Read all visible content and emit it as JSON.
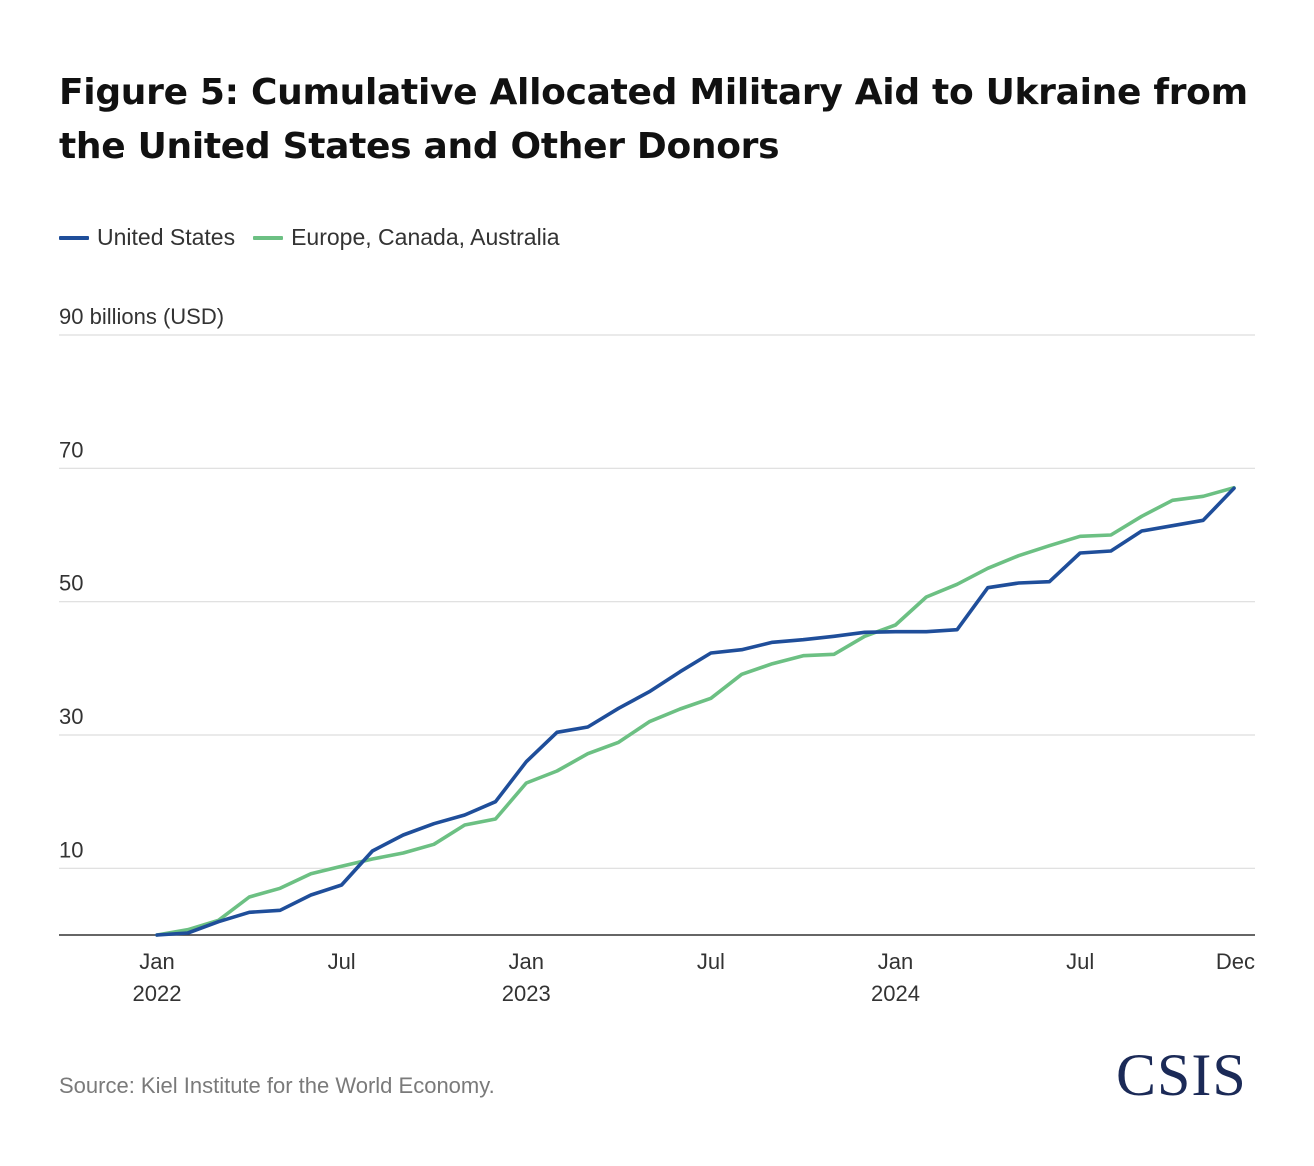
{
  "title": "Figure 5: Cumulative Allocated Military Aid to Ukraine from the United States and Other Donors",
  "legend": [
    {
      "label": "United States",
      "color": "#1f4e9a"
    },
    {
      "label": "Europe, Canada, Australia",
      "color": "#6cc083"
    }
  ],
  "source": "Source: Kiel Institute for the World Economy.",
  "logo_text": "CSIS",
  "chart_data": {
    "type": "line",
    "ylabel": "billions (USD)",
    "ylim": [
      0,
      90
    ],
    "yticks": [
      {
        "value": 90,
        "label": "90 billions (USD)"
      },
      {
        "value": 70,
        "label": "70"
      },
      {
        "value": 50,
        "label": "50"
      },
      {
        "value": 30,
        "label": "30"
      },
      {
        "value": 10,
        "label": "10"
      }
    ],
    "x_range": [
      0,
      35
    ],
    "xticks": [
      {
        "index": 0,
        "line1": "Jan",
        "line2": "2022"
      },
      {
        "index": 6,
        "line1": "Jul",
        "line2": ""
      },
      {
        "index": 12,
        "line1": "Jan",
        "line2": "2023"
      },
      {
        "index": 18,
        "line1": "Jul",
        "line2": ""
      },
      {
        "index": 24,
        "line1": "Jan",
        "line2": "2024"
      },
      {
        "index": 30,
        "line1": "Jul",
        "line2": ""
      },
      {
        "index": 35,
        "line1": "Dec",
        "line2": ""
      }
    ],
    "x": [
      "Jan 2022",
      "Feb 2022",
      "Mar 2022",
      "Apr 2022",
      "May 2022",
      "Jun 2022",
      "Jul 2022",
      "Aug 2022",
      "Sep 2022",
      "Oct 2022",
      "Nov 2022",
      "Dec 2022",
      "Jan 2023",
      "Feb 2023",
      "Mar 2023",
      "Apr 2023",
      "May 2023",
      "Jun 2023",
      "Jul 2023",
      "Aug 2023",
      "Sep 2023",
      "Oct 2023",
      "Nov 2023",
      "Dec 2023",
      "Jan 2024",
      "Feb 2024",
      "Mar 2024",
      "Apr 2024",
      "May 2024",
      "Jun 2024",
      "Jul 2024",
      "Aug 2024",
      "Sep 2024",
      "Oct 2024",
      "Nov 2024",
      "Dec 2024"
    ],
    "series": [
      {
        "name": "United States",
        "color": "#1f4e9a",
        "values": [
          0,
          0.3,
          2,
          3.4,
          3.7,
          6,
          7.5,
          12.6,
          15,
          16.7,
          18,
          20,
          26,
          30.4,
          31.2,
          34,
          36.5,
          39.5,
          42.3,
          42.8,
          43.9,
          44.3,
          44.8,
          45.4,
          45.5,
          45.5,
          45.8,
          52.1,
          52.8,
          53,
          57.3,
          57.6,
          60.6,
          61.4,
          62.2,
          67
        ]
      },
      {
        "name": "Europe, Canada, Australia",
        "color": "#6cc083",
        "values": [
          0,
          0.8,
          2.2,
          5.7,
          7,
          9.2,
          10.3,
          11.4,
          12.3,
          13.6,
          16.5,
          17.4,
          22.8,
          24.6,
          27.2,
          28.9,
          32,
          33.9,
          35.5,
          39.1,
          40.7,
          41.9,
          42.1,
          44.8,
          46.5,
          50.7,
          52.6,
          55,
          56.9,
          58.4,
          59.8,
          60,
          62.8,
          65.2,
          65.8,
          67.1
        ]
      }
    ]
  }
}
